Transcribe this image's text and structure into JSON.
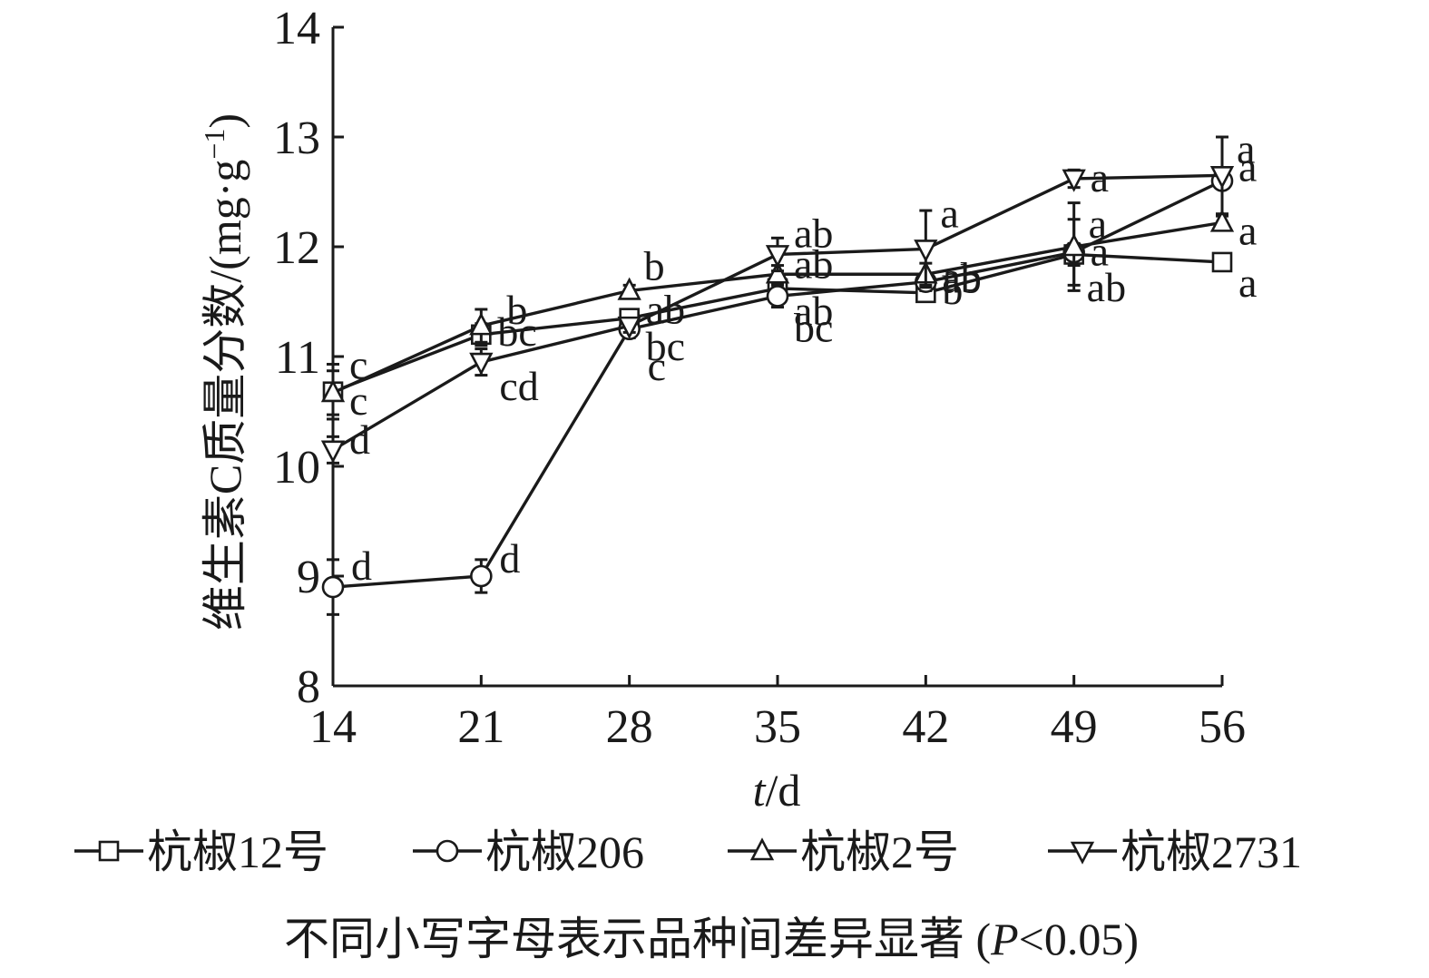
{
  "chart_data": {
    "type": "line",
    "xlabel_var": "t",
    "xlabel_unit": "/d",
    "ylabel": "维生素C质量分数/(mg·g",
    "ylabel_sup": "−1",
    "ylabel_close": ")",
    "x": [
      14,
      21,
      28,
      35,
      42,
      49,
      56
    ],
    "xlim": [
      14,
      56
    ],
    "ylim": [
      8,
      14
    ],
    "yticks": [
      8,
      9,
      10,
      11,
      12,
      13,
      14
    ],
    "grid": false,
    "legend_position": "bottom",
    "series": [
      {
        "name": "杭椒12号",
        "marker": "square",
        "values": [
          10.68,
          11.2,
          11.35,
          11.62,
          11.58,
          11.93,
          11.86
        ],
        "errors": [
          0.25,
          0.1,
          0.08,
          0.06,
          0.06,
          0.1,
          0.05
        ],
        "labels": [
          "c",
          "bc",
          "ab",
          "ab",
          "b",
          "a",
          "a"
        ]
      },
      {
        "name": "杭椒206",
        "marker": "circle",
        "values": [
          8.9,
          9.0,
          11.25,
          11.55,
          11.68,
          11.95,
          12.6
        ],
        "errors": [
          0.25,
          0.15,
          0.08,
          0.1,
          0.08,
          0.3,
          0.4
        ],
        "labels": [
          "d",
          "d",
          "c",
          "bc",
          "ab",
          "ab",
          "a"
        ]
      },
      {
        "name": "杭椒2号",
        "marker": "triangle-up",
        "values": [
          10.67,
          11.28,
          11.6,
          11.75,
          11.75,
          12.0,
          12.22
        ],
        "errors": [
          0.2,
          0.15,
          0.05,
          0.08,
          0.1,
          0.4,
          0.06
        ],
        "labels": [
          "c",
          "b",
          "b",
          "ab",
          "ab",
          "a",
          "a"
        ]
      },
      {
        "name": "杭椒2731",
        "marker": "triangle-down",
        "values": [
          10.15,
          10.95,
          11.28,
          11.93,
          11.98,
          12.62,
          12.65
        ],
        "errors": [
          0.12,
          0.12,
          0.06,
          0.15,
          0.35,
          0.08,
          0.35
        ],
        "labels": [
          "d",
          "cd",
          "bc",
          "ab",
          "a",
          "a",
          "a"
        ]
      }
    ],
    "footnote": "不同小写字母表示品种间差异显著 (",
    "footnote_var": "P",
    "footnote_rest": "<0.05)"
  }
}
